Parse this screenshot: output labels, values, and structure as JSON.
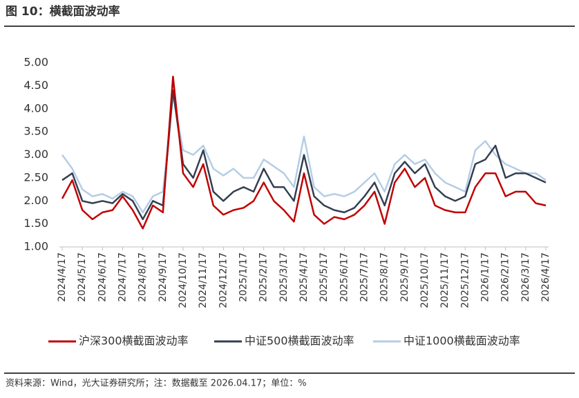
{
  "chart_data": {
    "type": "line",
    "title": "图 10：横截面波动率",
    "source": "资料来源：Wind，光大证券研究所；注：数据截至 2026.04.17；单位：%",
    "categories": [
      "2024/4/17",
      null,
      "2024/5/17",
      null,
      "2024/6/17",
      null,
      "2024/7/17",
      null,
      "2024/8/17",
      null,
      "2024/9/17",
      null,
      "2024/10/17",
      null,
      "2024/11/17",
      null,
      "2024/12/17",
      null,
      "2025/1/17",
      null,
      "2025/2/17",
      null,
      "2025/3/17",
      null,
      "2025/4/17",
      null,
      "2025/5/17",
      null,
      "2025/6/17",
      null,
      "2025/7/17",
      null,
      "2025/8/17",
      null,
      "2025/9/17",
      null,
      "2025/10/17",
      null,
      "2025/11/17",
      null,
      "2025/12/17",
      null,
      "2026/1/17",
      null,
      "2026/2/17",
      null,
      "2026/3/17",
      null,
      "2026/4/17"
    ],
    "series": [
      {
        "name": "沪深300横截面波动率",
        "color": "#c00000",
        "values": [
          2.05,
          2.45,
          1.8,
          1.6,
          1.75,
          1.8,
          2.1,
          1.8,
          1.4,
          1.9,
          1.75,
          4.7,
          2.6,
          2.3,
          2.8,
          1.9,
          1.7,
          1.8,
          1.85,
          2.0,
          2.4,
          2.0,
          1.8,
          1.55,
          2.6,
          1.7,
          1.5,
          1.65,
          1.6,
          1.7,
          1.9,
          2.2,
          1.5,
          2.4,
          2.7,
          2.3,
          2.5,
          1.9,
          1.8,
          1.75,
          1.75,
          2.3,
          2.6,
          2.6,
          2.1,
          2.2,
          2.2,
          1.95,
          1.9
        ]
      },
      {
        "name": "中证500横截面波动率",
        "color": "#333f50",
        "values": [
          2.45,
          2.6,
          2.0,
          1.95,
          2.0,
          1.95,
          2.15,
          2.0,
          1.6,
          2.0,
          1.9,
          4.4,
          2.8,
          2.5,
          3.1,
          2.2,
          2.0,
          2.2,
          2.3,
          2.2,
          2.7,
          2.3,
          2.3,
          2.0,
          3.0,
          2.1,
          1.9,
          1.8,
          1.75,
          1.85,
          2.1,
          2.4,
          1.9,
          2.6,
          2.85,
          2.6,
          2.8,
          2.3,
          2.1,
          2.0,
          2.1,
          2.8,
          2.9,
          3.2,
          2.5,
          2.6,
          2.6,
          2.5,
          2.4
        ]
      },
      {
        "name": "中证1000横截面波动率",
        "color": "#b4cde6",
        "values": [
          3.0,
          2.7,
          2.25,
          2.1,
          2.15,
          2.05,
          2.2,
          2.1,
          1.75,
          2.1,
          2.2,
          4.3,
          3.1,
          3.0,
          3.2,
          2.7,
          2.55,
          2.7,
          2.5,
          2.5,
          2.9,
          2.75,
          2.6,
          2.3,
          3.4,
          2.3,
          2.1,
          2.15,
          2.1,
          2.2,
          2.4,
          2.6,
          2.2,
          2.8,
          3.0,
          2.8,
          2.9,
          2.6,
          2.4,
          2.3,
          2.2,
          3.1,
          3.3,
          3.0,
          2.8,
          2.7,
          2.6,
          2.6,
          2.45
        ]
      }
    ],
    "ylim": [
      1,
      5
    ],
    "yticks": [
      {
        "value": 1,
        "label": "1.00"
      },
      {
        "value": 1.5,
        "label": "1.50"
      },
      {
        "value": 2,
        "label": "2.00"
      },
      {
        "value": 2.5,
        "label": "2.50"
      },
      {
        "value": 3,
        "label": "3.00"
      },
      {
        "value": 3.5,
        "label": "3.50"
      },
      {
        "value": 4,
        "label": "4.00"
      },
      {
        "value": 4.5,
        "label": "4.50"
      },
      {
        "value": 5,
        "label": "5.00"
      }
    ],
    "grid": false,
    "legend": "bottom"
  }
}
